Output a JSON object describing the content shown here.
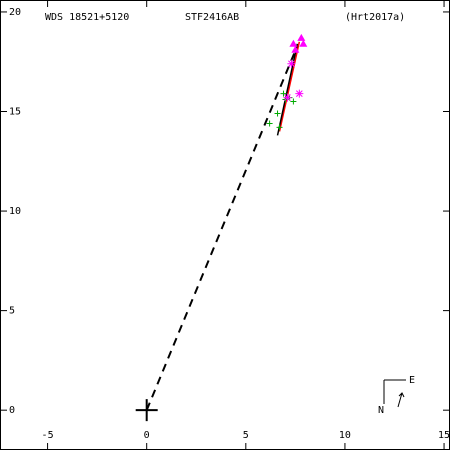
{
  "chart_data": {
    "type": "scatter",
    "title": "WDS 18521+5120",
    "subtitle": "STF2416AB",
    "reference": "(Hrt2017a)",
    "compass": {
      "north": "N",
      "east": "E"
    },
    "xlim": [
      -7.4,
      15.3
    ],
    "ylim": [
      -2.0,
      20.6
    ],
    "xticks": [
      -5,
      0,
      5,
      10,
      15
    ],
    "yticks": [
      0,
      5,
      10,
      15,
      20
    ],
    "series": [
      {
        "marker": "dashed",
        "color": "#000000",
        "x": [
          0,
          7.6
        ],
        "y": [
          0,
          18.3
        ]
      },
      {
        "marker": "line",
        "color": "#ff0000",
        "x": [
          6.7,
          7.7
        ],
        "y": [
          14.0,
          18.5
        ]
      },
      {
        "marker": "line",
        "color": "#000000",
        "x": [
          6.6,
          7.6
        ],
        "y": [
          13.8,
          18.4
        ]
      },
      {
        "marker": "plus",
        "color": "#00aa00",
        "x": [
          6.2,
          6.6,
          6.7,
          6.9,
          7.2,
          7.4,
          7.0
        ],
        "y": [
          14.4,
          14.9,
          14.2,
          15.9,
          15.7,
          15.5,
          15.6
        ]
      },
      {
        "marker": "asterisk",
        "color": "#ff00ff",
        "x": [
          7.7,
          7.1,
          7.3
        ],
        "y": [
          15.9,
          15.7,
          17.4
        ]
      },
      {
        "marker": "triangle",
        "color": "#ff00ff",
        "x": [
          7.4,
          7.8,
          7.9,
          7.5
        ],
        "y": [
          18.4,
          18.7,
          18.4,
          18.1
        ]
      },
      {
        "marker": "origin",
        "color": "#000000",
        "x": [
          0
        ],
        "y": [
          0
        ]
      }
    ]
  }
}
